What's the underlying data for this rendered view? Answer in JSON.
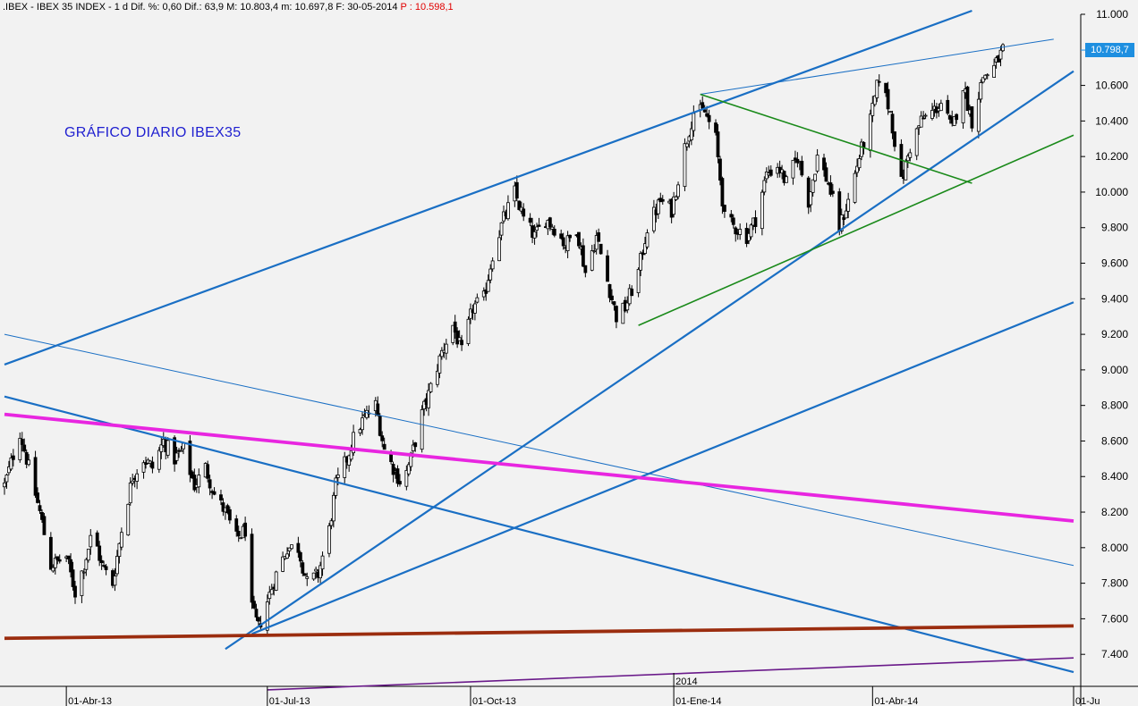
{
  "header": {
    "ticker": ".IBEX",
    "description": "IBEX 35 INDEX",
    "info": " - 1 d Dif. %: 0,60 Dif.: 63,9 M: 10.803,4 m: 10.697,8 F: 30-05-2014 ",
    "p_label": "P : 10.598,1"
  },
  "chart_title": "GRÁFICO DIARIO IBEX35",
  "last_price_label": "10.798,7",
  "colors": {
    "background": "#f2f2f2",
    "candles": "#000000",
    "blue_lines": "#1a6fc4",
    "green_lines": "#1a8a1a",
    "magenta_line": "#e826e0",
    "brown_line": "#9b2d0f",
    "purple_line": "#6a1a8a",
    "price_tag": "#1e8fe0",
    "title_text": "#1f1fd0",
    "p_value": "#e00000"
  },
  "chart_data": {
    "type": "candlestick",
    "title": "GRÁFICO DIARIO IBEX35",
    "y_ticks": [
      "7.400",
      "7.600",
      "7.800",
      "8.000",
      "8.200",
      "8.400",
      "8.600",
      "8.800",
      "9.000",
      "9.200",
      "9.400",
      "9.600",
      "9.800",
      "10.000",
      "10.200",
      "10.400",
      "10.600",
      "11.000"
    ],
    "y_tick_values": [
      7400,
      7600,
      7800,
      8000,
      8200,
      8400,
      8600,
      8800,
      9000,
      9200,
      9400,
      9600,
      9800,
      10000,
      10200,
      10400,
      10600,
      11000
    ],
    "ylim": [
      7220,
      11000
    ],
    "x_ticks": [
      {
        "label": "01-Abr-13",
        "date": "2013-04-01"
      },
      {
        "label": "01-Jul-13",
        "date": "2013-07-01"
      },
      {
        "label": "01-Oct-13",
        "date": "2013-10-01"
      },
      {
        "label": "01-Ene-14",
        "date": "2014-01-01"
      },
      {
        "label": "01-Abr-14",
        "date": "2014-04-01"
      },
      {
        "label": "01-Ju",
        "date": "2014-07-01"
      }
    ],
    "year_marker": {
      "label": "2014",
      "date": "2014-01-01"
    },
    "xlim": [
      "2013-03-04",
      "2014-07-01"
    ],
    "close_path": [
      [
        "2013-03-04",
        8350
      ],
      [
        "2013-03-11",
        8650
      ],
      [
        "2013-03-15",
        8450
      ],
      [
        "2013-03-20",
        8200
      ],
      [
        "2013-03-25",
        7900
      ],
      [
        "2013-04-01",
        7950
      ],
      [
        "2013-04-05",
        7750
      ],
      [
        "2013-04-09",
        7900
      ],
      [
        "2013-04-13",
        8100
      ],
      [
        "2013-04-17",
        7900
      ],
      [
        "2013-04-22",
        7800
      ],
      [
        "2013-04-26",
        8100
      ],
      [
        "2013-05-01",
        8400
      ],
      [
        "2013-05-06",
        8500
      ],
      [
        "2013-05-10",
        8450
      ],
      [
        "2013-05-15",
        8600
      ],
      [
        "2013-05-20",
        8500
      ],
      [
        "2013-05-24",
        8550
      ],
      [
        "2013-05-29",
        8350
      ],
      [
        "2013-06-03",
        8450
      ],
      [
        "2013-06-07",
        8300
      ],
      [
        "2013-06-12",
        8200
      ],
      [
        "2013-06-17",
        8050
      ],
      [
        "2013-06-21",
        8100
      ],
      [
        "2013-06-24",
        7650
      ],
      [
        "2013-06-27",
        7550
      ],
      [
        "2013-07-01",
        7700
      ],
      [
        "2013-07-05",
        7850
      ],
      [
        "2013-07-10",
        8000
      ],
      [
        "2013-07-15",
        8000
      ],
      [
        "2013-07-19",
        7800
      ],
      [
        "2013-07-24",
        7850
      ],
      [
        "2013-07-29",
        8100
      ],
      [
        "2013-08-01",
        8350
      ],
      [
        "2013-08-06",
        8500
      ],
      [
        "2013-08-10",
        8650
      ],
      [
        "2013-08-15",
        8750
      ],
      [
        "2013-08-19",
        8800
      ],
      [
        "2013-08-23",
        8550
      ],
      [
        "2013-08-27",
        8450
      ],
      [
        "2013-08-31",
        8350
      ],
      [
        "2013-09-04",
        8500
      ],
      [
        "2013-09-09",
        8750
      ],
      [
        "2013-09-13",
        8900
      ],
      [
        "2013-09-18",
        9100
      ],
      [
        "2013-09-23",
        9250
      ],
      [
        "2013-09-27",
        9100
      ],
      [
        "2013-10-02",
        9350
      ],
      [
        "2013-10-07",
        9400
      ],
      [
        "2013-10-11",
        9650
      ],
      [
        "2013-10-16",
        9850
      ],
      [
        "2013-10-21",
        10000
      ],
      [
        "2013-10-25",
        9850
      ],
      [
        "2013-10-30",
        9750
      ],
      [
        "2013-11-04",
        9850
      ],
      [
        "2013-11-08",
        9800
      ],
      [
        "2013-11-13",
        9700
      ],
      [
        "2013-11-18",
        9800
      ],
      [
        "2013-11-22",
        9550
      ],
      [
        "2013-11-27",
        9750
      ],
      [
        "2013-12-02",
        9500
      ],
      [
        "2013-12-06",
        9300
      ],
      [
        "2013-12-10",
        9350
      ],
      [
        "2013-12-16",
        9550
      ],
      [
        "2013-12-20",
        9800
      ],
      [
        "2013-12-26",
        9950
      ],
      [
        "2013-12-31",
        9900
      ],
      [
        "2014-01-06",
        10250
      ],
      [
        "2014-01-10",
        10450
      ],
      [
        "2014-01-15",
        10450
      ],
      [
        "2014-01-20",
        10300
      ],
      [
        "2014-01-24",
        9850
      ],
      [
        "2014-01-29",
        9800
      ],
      [
        "2014-02-03",
        9750
      ],
      [
        "2014-02-07",
        9850
      ],
      [
        "2014-02-12",
        10100
      ],
      [
        "2014-02-17",
        10150
      ],
      [
        "2014-02-21",
        10050
      ],
      [
        "2014-02-26",
        10200
      ],
      [
        "2014-03-03",
        9950
      ],
      [
        "2014-03-07",
        10200
      ],
      [
        "2014-03-12",
        10050
      ],
      [
        "2014-03-17",
        9800
      ],
      [
        "2014-03-21",
        9950
      ],
      [
        "2014-03-26",
        10200
      ],
      [
        "2014-03-31",
        10400
      ],
      [
        "2014-04-04",
        10650
      ],
      [
        "2014-04-09",
        10450
      ],
      [
        "2014-04-14",
        10050
      ],
      [
        "2014-04-18",
        10250
      ],
      [
        "2014-04-23",
        10400
      ],
      [
        "2014-04-28",
        10450
      ],
      [
        "2014-05-02",
        10500
      ],
      [
        "2014-05-07",
        10350
      ],
      [
        "2014-05-12",
        10600
      ],
      [
        "2014-05-16",
        10400
      ],
      [
        "2014-05-21",
        10650
      ],
      [
        "2014-05-26",
        10700
      ],
      [
        "2014-05-30",
        10799
      ]
    ],
    "trend_lines": [
      {
        "color": "blue",
        "width": "thick",
        "from": [
          "2013-03-04",
          9030
        ],
        "to": [
          "2014-05-16",
          11020
        ]
      },
      {
        "color": "blue",
        "width": "thin",
        "from": [
          "2014-01-13",
          10550
        ],
        "to": [
          "2014-06-22",
          10860
        ]
      },
      {
        "color": "blue",
        "width": "thick",
        "from": [
          "2013-06-12",
          7430
        ],
        "to": [
          "2014-07-01",
          10680
        ]
      },
      {
        "color": "blue",
        "width": "thick",
        "from": [
          "2013-06-24",
          7515
        ],
        "to": [
          "2014-07-01",
          9380
        ]
      },
      {
        "color": "blue",
        "width": "thin",
        "from": [
          "2013-03-04",
          9200
        ],
        "to": [
          "2014-07-01",
          7900
        ]
      },
      {
        "color": "blue",
        "width": "thick",
        "from": [
          "2013-03-04",
          8850
        ],
        "to": [
          "2014-07-01",
          7300
        ]
      },
      {
        "color": "green",
        "width": "medium",
        "from": [
          "2013-12-16",
          9250
        ],
        "to": [
          "2014-07-01",
          10320
        ]
      },
      {
        "color": "green",
        "width": "medium",
        "from": [
          "2014-01-13",
          10550
        ],
        "to": [
          "2014-05-16",
          10050
        ]
      },
      {
        "color": "magenta",
        "width": "very-thick",
        "from": [
          "2013-03-04",
          8750
        ],
        "to": [
          "2014-07-01",
          8150
        ]
      },
      {
        "color": "brown",
        "width": "very-thick",
        "from": [
          "2013-03-04",
          7490
        ],
        "to": [
          "2014-07-01",
          7560
        ]
      },
      {
        "color": "purple",
        "width": "medium",
        "from": [
          "2013-07-01",
          7200
        ],
        "to": [
          "2014-07-01",
          7380
        ]
      }
    ],
    "last_price": 10798.7
  }
}
